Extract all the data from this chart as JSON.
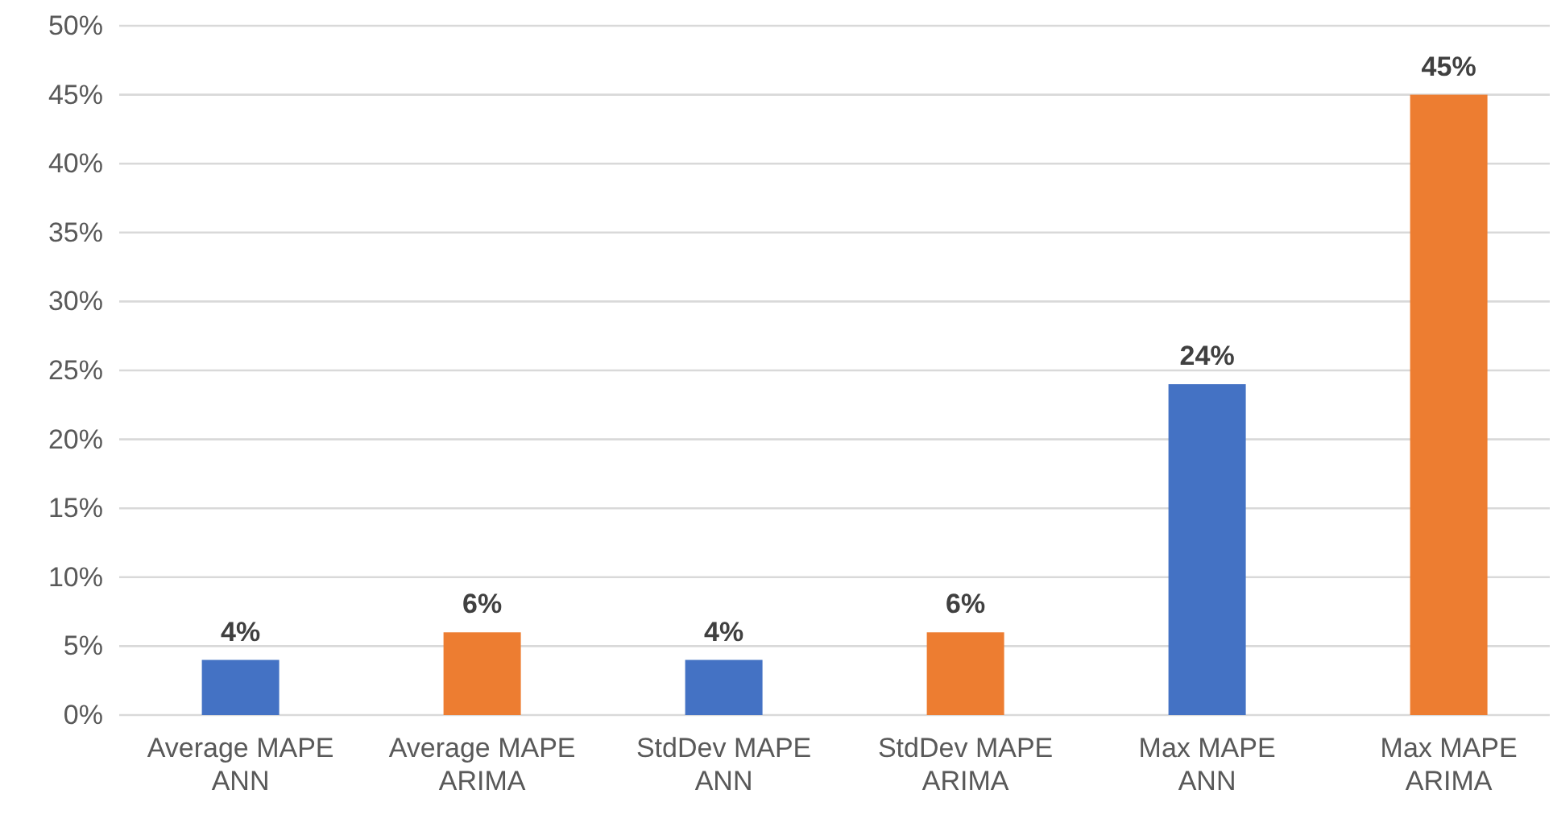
{
  "chart_data": {
    "type": "bar",
    "categories": [
      "Average MAPE ANN",
      "Average MAPE ARIMA",
      "StdDev MAPE ANN",
      "StdDev MAPE ARIMA",
      "Max MAPE ANN",
      "Max MAPE ARIMA"
    ],
    "series": [
      {
        "values": [
          4,
          6,
          4,
          6,
          24,
          45
        ],
        "colors": [
          "#4472c4",
          "#ed7d31",
          "#4472c4",
          "#ed7d31",
          "#4472c4",
          "#ed7d31"
        ],
        "value_labels": [
          "4%",
          "6%",
          "4%",
          "6%",
          "24%",
          "45%"
        ]
      }
    ],
    "ylim": [
      0,
      50
    ],
    "yticks": [
      {
        "value": 0,
        "label": "0%"
      },
      {
        "value": 5,
        "label": "5%"
      },
      {
        "value": 10,
        "label": "10%"
      },
      {
        "value": 15,
        "label": "15%"
      },
      {
        "value": 20,
        "label": "20%"
      },
      {
        "value": 25,
        "label": "25%"
      },
      {
        "value": 30,
        "label": "30%"
      },
      {
        "value": 35,
        "label": "35%"
      },
      {
        "value": 40,
        "label": "40%"
      },
      {
        "value": 45,
        "label": "45%"
      },
      {
        "value": 50,
        "label": "50%"
      }
    ],
    "grid": "y"
  }
}
